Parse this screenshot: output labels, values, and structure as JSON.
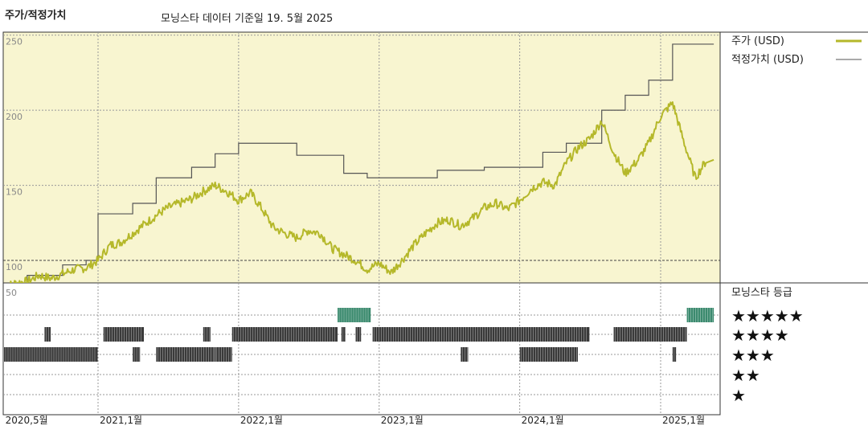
{
  "header": {
    "section_title": "주가/적정가치",
    "source_note": "모닝스타 데이터 기준일 19. 5월 2025"
  },
  "legend": {
    "price_label": "주가 (USD)",
    "fair_value_label": "적정가치 (USD)",
    "rating_title": "모닝스타 등급"
  },
  "colors": {
    "price": "#b5b82a",
    "fair_value": "#555555",
    "plot_bg": "#f8f5d0",
    "rating_bar": "#3a3a3a",
    "rating_5star": "#3b8a6e"
  },
  "chart_data": [
    {
      "type": "line",
      "title": "주가/적정가치",
      "x_ticks": [
        "2020,5월",
        "2021,1월",
        "2022,1월",
        "2023,1월",
        "2024,1월",
        "2025,1월"
      ],
      "y_ticks": [
        100,
        150,
        200,
        250
      ],
      "ylim": [
        85,
        252
      ],
      "grid": true,
      "legend_position": "right",
      "series": [
        {
          "name": "주가 (USD)",
          "points": [
            [
              "2020-05-01",
              82
            ],
            [
              "2020-06-01",
              85
            ],
            [
              "2020-07-01",
              86
            ],
            [
              "2020-08-01",
              90
            ],
            [
              "2020-09-01",
              88
            ],
            [
              "2020-10-01",
              91
            ],
            [
              "2020-11-01",
              94
            ],
            [
              "2020-12-01",
              95
            ],
            [
              "2021-01-01",
              100
            ],
            [
              "2021-02-01",
              110
            ],
            [
              "2021-03-01",
              112
            ],
            [
              "2021-04-01",
              118
            ],
            [
              "2021-05-01",
              124
            ],
            [
              "2021-06-01",
              130
            ],
            [
              "2021-07-01",
              135
            ],
            [
              "2021-08-01",
              138
            ],
            [
              "2021-09-01",
              141
            ],
            [
              "2021-10-01",
              146
            ],
            [
              "2021-11-01",
              150
            ],
            [
              "2021-12-01",
              146
            ],
            [
              "2022-01-01",
              140
            ],
            [
              "2022-02-01",
              145
            ],
            [
              "2022-03-01",
              135
            ],
            [
              "2022-04-01",
              122
            ],
            [
              "2022-05-01",
              118
            ],
            [
              "2022-06-01",
              115
            ],
            [
              "2022-07-01",
              120
            ],
            [
              "2022-08-01",
              118
            ],
            [
              "2022-09-01",
              108
            ],
            [
              "2022-10-01",
              104
            ],
            [
              "2022-11-01",
              100
            ],
            [
              "2022-12-01",
              94
            ],
            [
              "2023-01-01",
              98
            ],
            [
              "2023-02-01",
              92
            ],
            [
              "2023-03-01",
              100
            ],
            [
              "2023-04-01",
              110
            ],
            [
              "2023-05-01",
              118
            ],
            [
              "2023-06-01",
              125
            ],
            [
              "2023-07-01",
              127
            ],
            [
              "2023-08-01",
              123
            ],
            [
              "2023-09-01",
              128
            ],
            [
              "2023-10-01",
              135
            ],
            [
              "2023-11-01",
              138
            ],
            [
              "2023-12-01",
              134
            ],
            [
              "2024-01-01",
              140
            ],
            [
              "2024-02-01",
              148
            ],
            [
              "2024-03-01",
              152
            ],
            [
              "2024-04-01",
              150
            ],
            [
              "2024-05-01",
              165
            ],
            [
              "2024-06-01",
              175
            ],
            [
              "2024-07-01",
              181
            ],
            [
              "2024-08-01",
              193
            ],
            [
              "2024-09-01",
              172
            ],
            [
              "2024-10-01",
              158
            ],
            [
              "2024-11-01",
              166
            ],
            [
              "2024-12-01",
              178
            ],
            [
              "2025-01-01",
              196
            ],
            [
              "2025-02-01",
              205
            ],
            [
              "2025-03-01",
              180
            ],
            [
              "2025-04-01",
              155
            ],
            [
              "2025-05-01",
              167
            ]
          ]
        },
        {
          "name": "적정가치 (USD)",
          "points": [
            [
              "2020-05-01",
              82
            ],
            [
              "2020-07-01",
              90
            ],
            [
              "2020-10-01",
              97
            ],
            [
              "2020-12-01",
              100
            ],
            [
              "2021-01-01",
              131
            ],
            [
              "2021-04-01",
              138
            ],
            [
              "2021-06-01",
              155
            ],
            [
              "2021-09-01",
              162
            ],
            [
              "2021-11-01",
              171
            ],
            [
              "2022-01-01",
              178
            ],
            [
              "2022-06-01",
              170
            ],
            [
              "2022-10-01",
              158
            ],
            [
              "2022-12-01",
              155
            ],
            [
              "2023-06-01",
              160
            ],
            [
              "2023-10-01",
              162
            ],
            [
              "2024-03-01",
              172
            ],
            [
              "2024-05-01",
              178
            ],
            [
              "2024-08-01",
              200
            ],
            [
              "2024-10-01",
              210
            ],
            [
              "2024-12-01",
              220
            ],
            [
              "2025-02-01",
              244
            ],
            [
              "2025-05-19",
              244
            ]
          ]
        }
      ]
    },
    {
      "type": "timeline",
      "title": "모닝스타 등급",
      "y_tick_label": "50",
      "levels": [
        "★★★★★",
        "★★★★",
        "★★★",
        "★★",
        "★"
      ],
      "periods": [
        {
          "from": "2020-05-01",
          "to": "2020-12-31",
          "stars": 3
        },
        {
          "from": "2020-08-15",
          "to": "2020-08-31",
          "stars": 4
        },
        {
          "from": "2021-01-15",
          "to": "2021-04-30",
          "stars": 4
        },
        {
          "from": "2021-04-01",
          "to": "2021-04-20",
          "stars": 3
        },
        {
          "from": "2021-06-01",
          "to": "2021-10-31",
          "stars": 3
        },
        {
          "from": "2021-10-01",
          "to": "2021-10-20",
          "stars": 4
        },
        {
          "from": "2021-11-01",
          "to": "2021-12-15",
          "stars": 3
        },
        {
          "from": "2021-12-15",
          "to": "2022-09-15",
          "stars": 4
        },
        {
          "from": "2022-09-15",
          "to": "2022-12-10",
          "stars": 5
        },
        {
          "from": "2022-09-25",
          "to": "2022-10-05",
          "stars": 4
        },
        {
          "from": "2022-11-01",
          "to": "2022-11-15",
          "stars": 4
        },
        {
          "from": "2022-12-15",
          "to": "2024-06-30",
          "stars": 4
        },
        {
          "from": "2023-08-01",
          "to": "2023-08-20",
          "stars": 3
        },
        {
          "from": "2024-01-01",
          "to": "2024-05-31",
          "stars": 3
        },
        {
          "from": "2024-09-01",
          "to": "2025-03-10",
          "stars": 4
        },
        {
          "from": "2025-02-01",
          "to": "2025-02-10",
          "stars": 3
        },
        {
          "from": "2025-03-10",
          "to": "2025-05-19",
          "stars": 5
        }
      ]
    }
  ]
}
